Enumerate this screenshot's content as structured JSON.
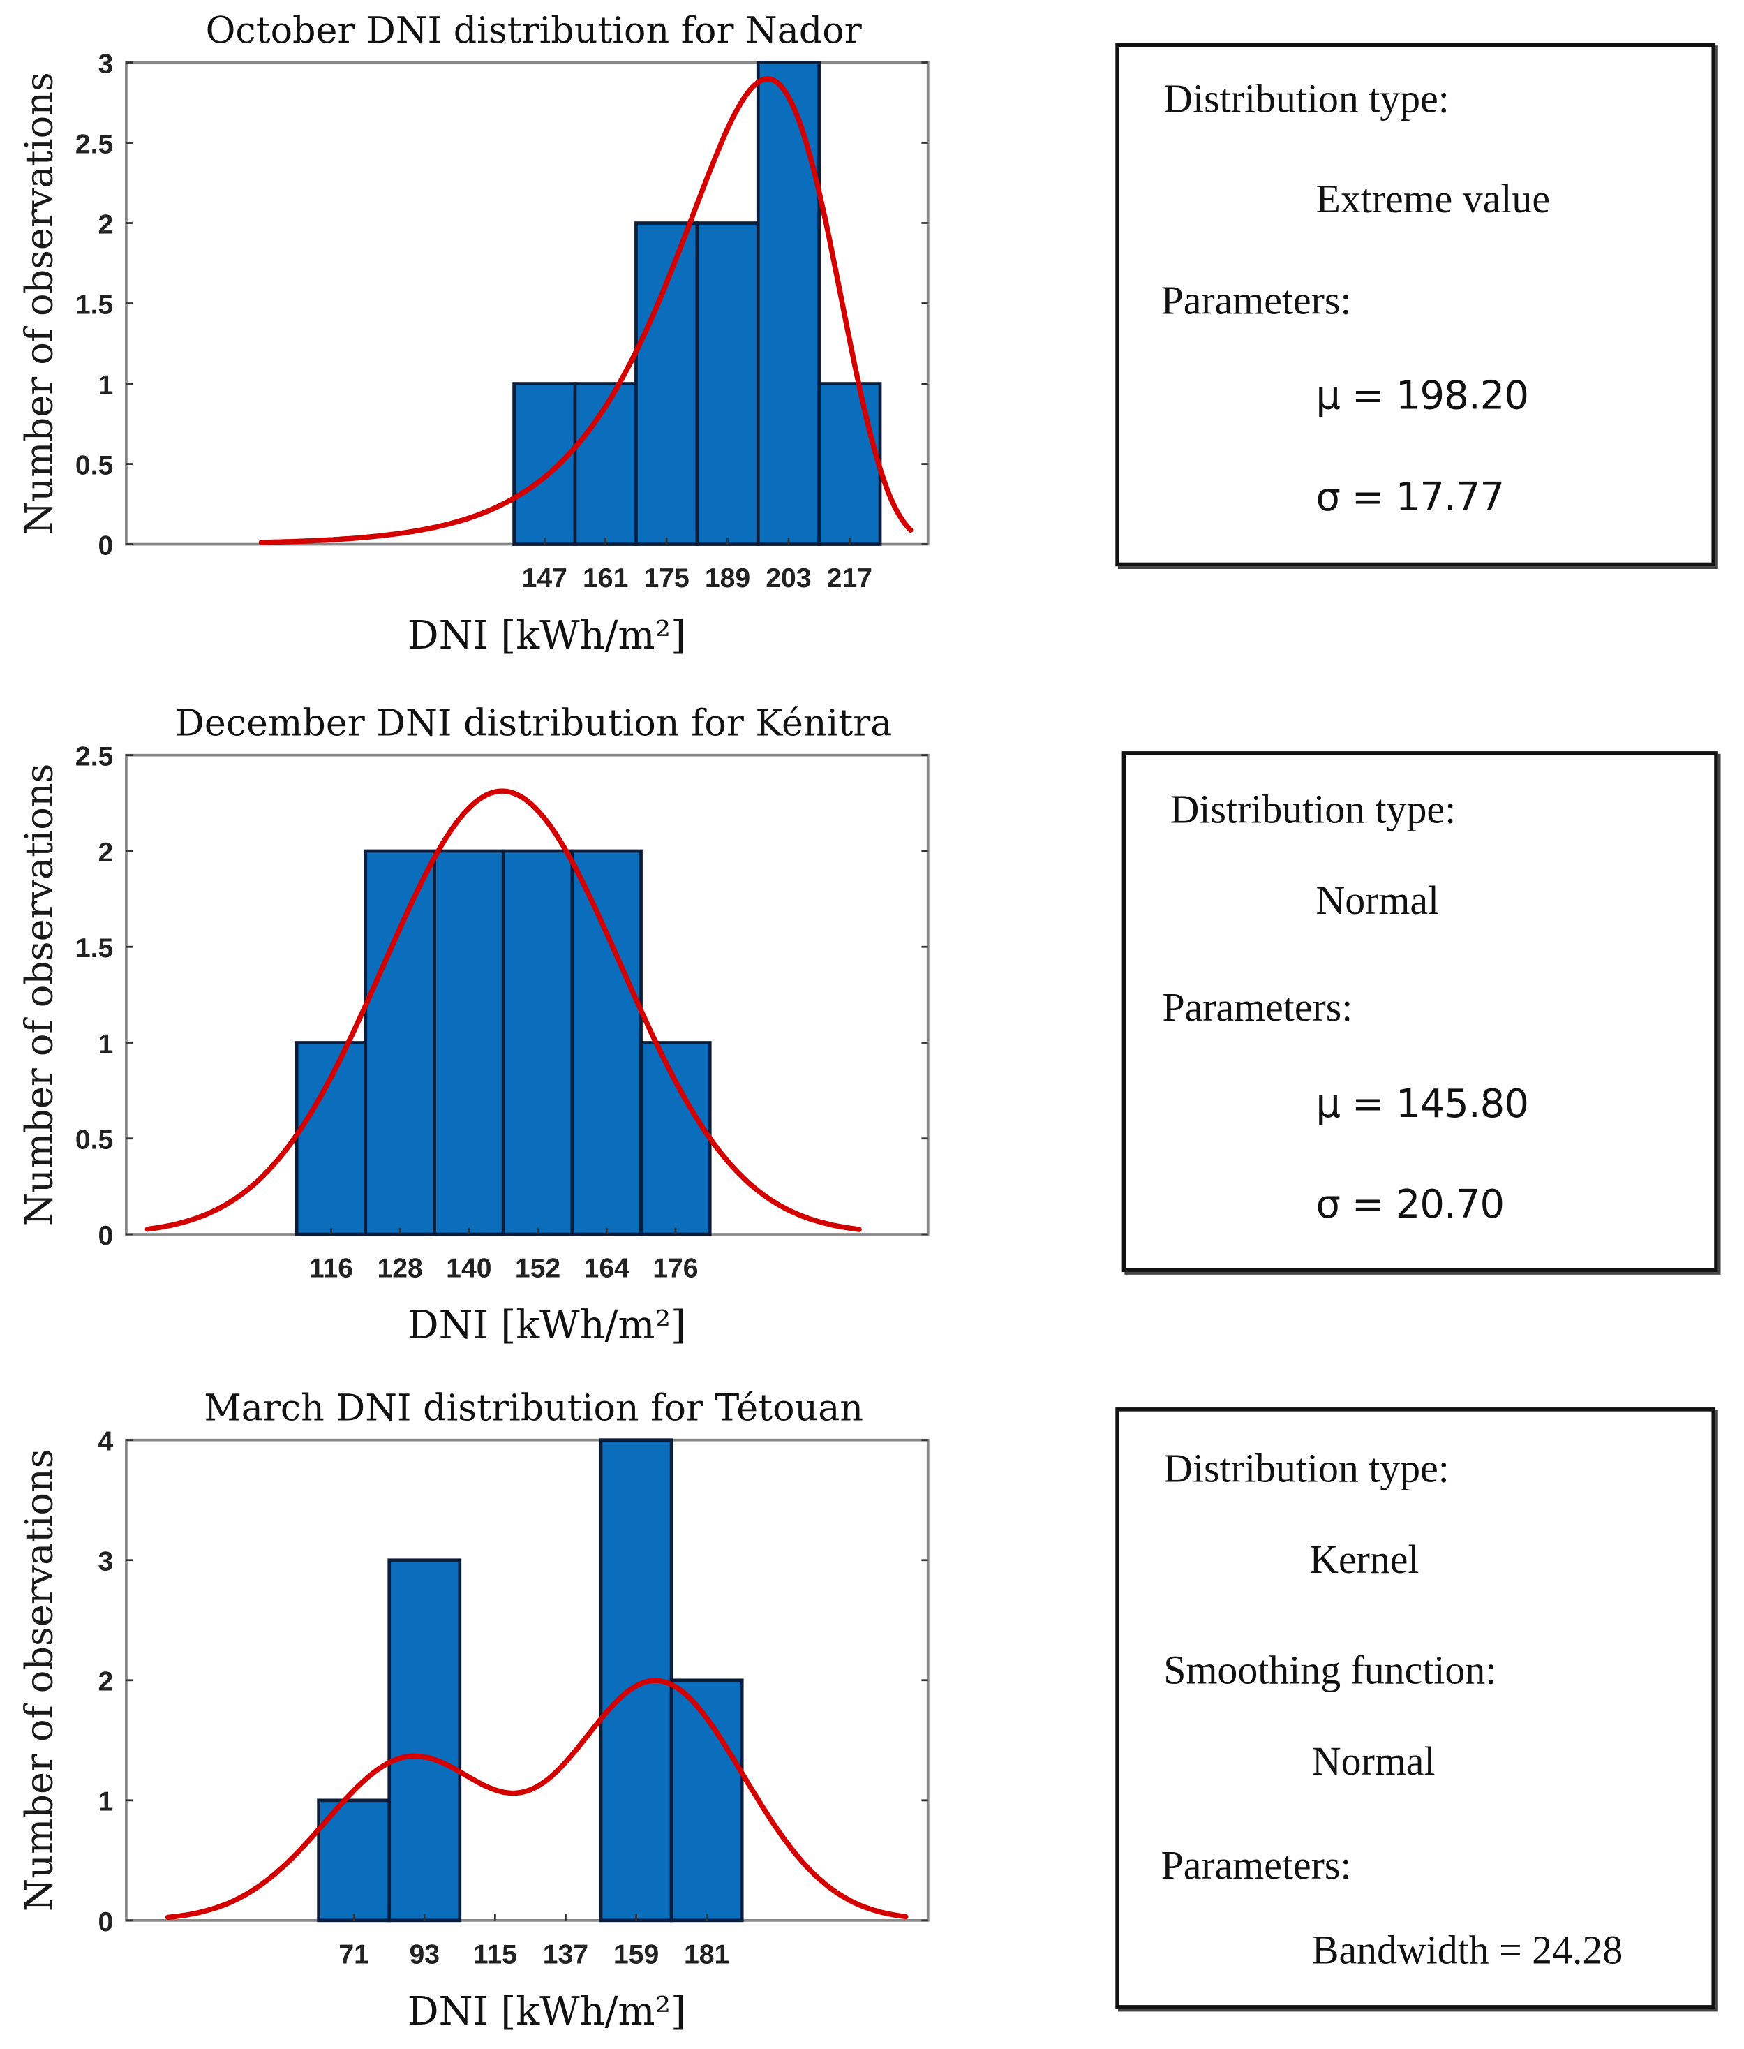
{
  "colors": {
    "bar": "#0a6ebd",
    "bar_edge": "#0b1d3a",
    "curve": "#d40000",
    "ylabel": "#1a1a1a"
  },
  "chart_data": [
    {
      "type": "bar",
      "title": "October DNI distribution for Nador",
      "xlabel": "DNI [kWh/m²]",
      "ylabel": "Number of observations",
      "categories": [
        "147",
        "161",
        "175",
        "189",
        "203",
        "217"
      ],
      "bin_centers": [
        147,
        161,
        175,
        189,
        203,
        217
      ],
      "bin_width": 14,
      "values": [
        1,
        1,
        2,
        2,
        3,
        1
      ],
      "xlim": [
        51,
        235
      ],
      "ylim": [
        0,
        3
      ],
      "yticks": [
        "0",
        "0.5",
        "1",
        "1.5",
        "2",
        "2.5",
        "3"
      ],
      "ytick_values": [
        0,
        0.5,
        1,
        1.5,
        2,
        2.5,
        3
      ],
      "fit": {
        "kind": "extreme-value",
        "mu": 198.2,
        "sigma": 17.77,
        "range": [
          82,
          231
        ]
      }
    },
    {
      "type": "bar",
      "title": "December DNI distribution for Kénitra",
      "xlabel": "DNI [kWh/m²]",
      "ylabel": "Number of observations",
      "categories": [
        "116",
        "128",
        "140",
        "152",
        "164",
        "176"
      ],
      "bin_centers": [
        116,
        128,
        140,
        152,
        164,
        176
      ],
      "bin_width": 12,
      "values": [
        1,
        2,
        2,
        2,
        2,
        1
      ],
      "xlim": [
        80.3,
        220
      ],
      "ylim": [
        0,
        2.5
      ],
      "yticks": [
        "0",
        "0.5",
        "1",
        "1.5",
        "2",
        "2.5"
      ],
      "ytick_values": [
        0,
        0.5,
        1,
        1.5,
        2,
        2.5
      ],
      "fit": {
        "kind": "normal",
        "mu": 145.8,
        "sigma": 20.7,
        "range": [
          84,
          208
        ]
      }
    },
    {
      "type": "bar",
      "title": "March DNI distribution for Tétouan",
      "xlabel": "DNI [kWh/m²]",
      "ylabel": "Number of observations",
      "categories": [
        "71",
        "93",
        "115",
        "137",
        "159",
        "181"
      ],
      "bin_centers": [
        71,
        93,
        115,
        137,
        159,
        181
      ],
      "bin_width": 22,
      "values": [
        1,
        3,
        0,
        0,
        4,
        2
      ],
      "xlim": [
        0,
        250
      ],
      "ylim": [
        0,
        4
      ],
      "yticks": [
        "0",
        "1",
        "2",
        "3",
        "4"
      ],
      "ytick_values": [
        0,
        1,
        2,
        3,
        4
      ],
      "fit": {
        "kind": "kernel",
        "bandwidth": 24.28,
        "range": [
          13,
          243
        ]
      }
    }
  ],
  "panels": [
    {
      "type_label": "Distribution type:",
      "type_value": "Extreme value",
      "params_label": "Parameters:",
      "mu": "μ = 198.20",
      "sigma": "σ = 17.77"
    },
    {
      "type_label": "Distribution type:",
      "type_value": "Normal",
      "params_label": "Parameters:",
      "mu": "μ = 145.80",
      "sigma": "σ = 20.70"
    },
    {
      "type_label": "Distribution type:",
      "type_value": "Kernel",
      "smoothing_label": "Smoothing function:",
      "smoothing_value": "Normal",
      "params_label": "Parameters:",
      "bandwidth": "Bandwidth = 24.28"
    }
  ]
}
